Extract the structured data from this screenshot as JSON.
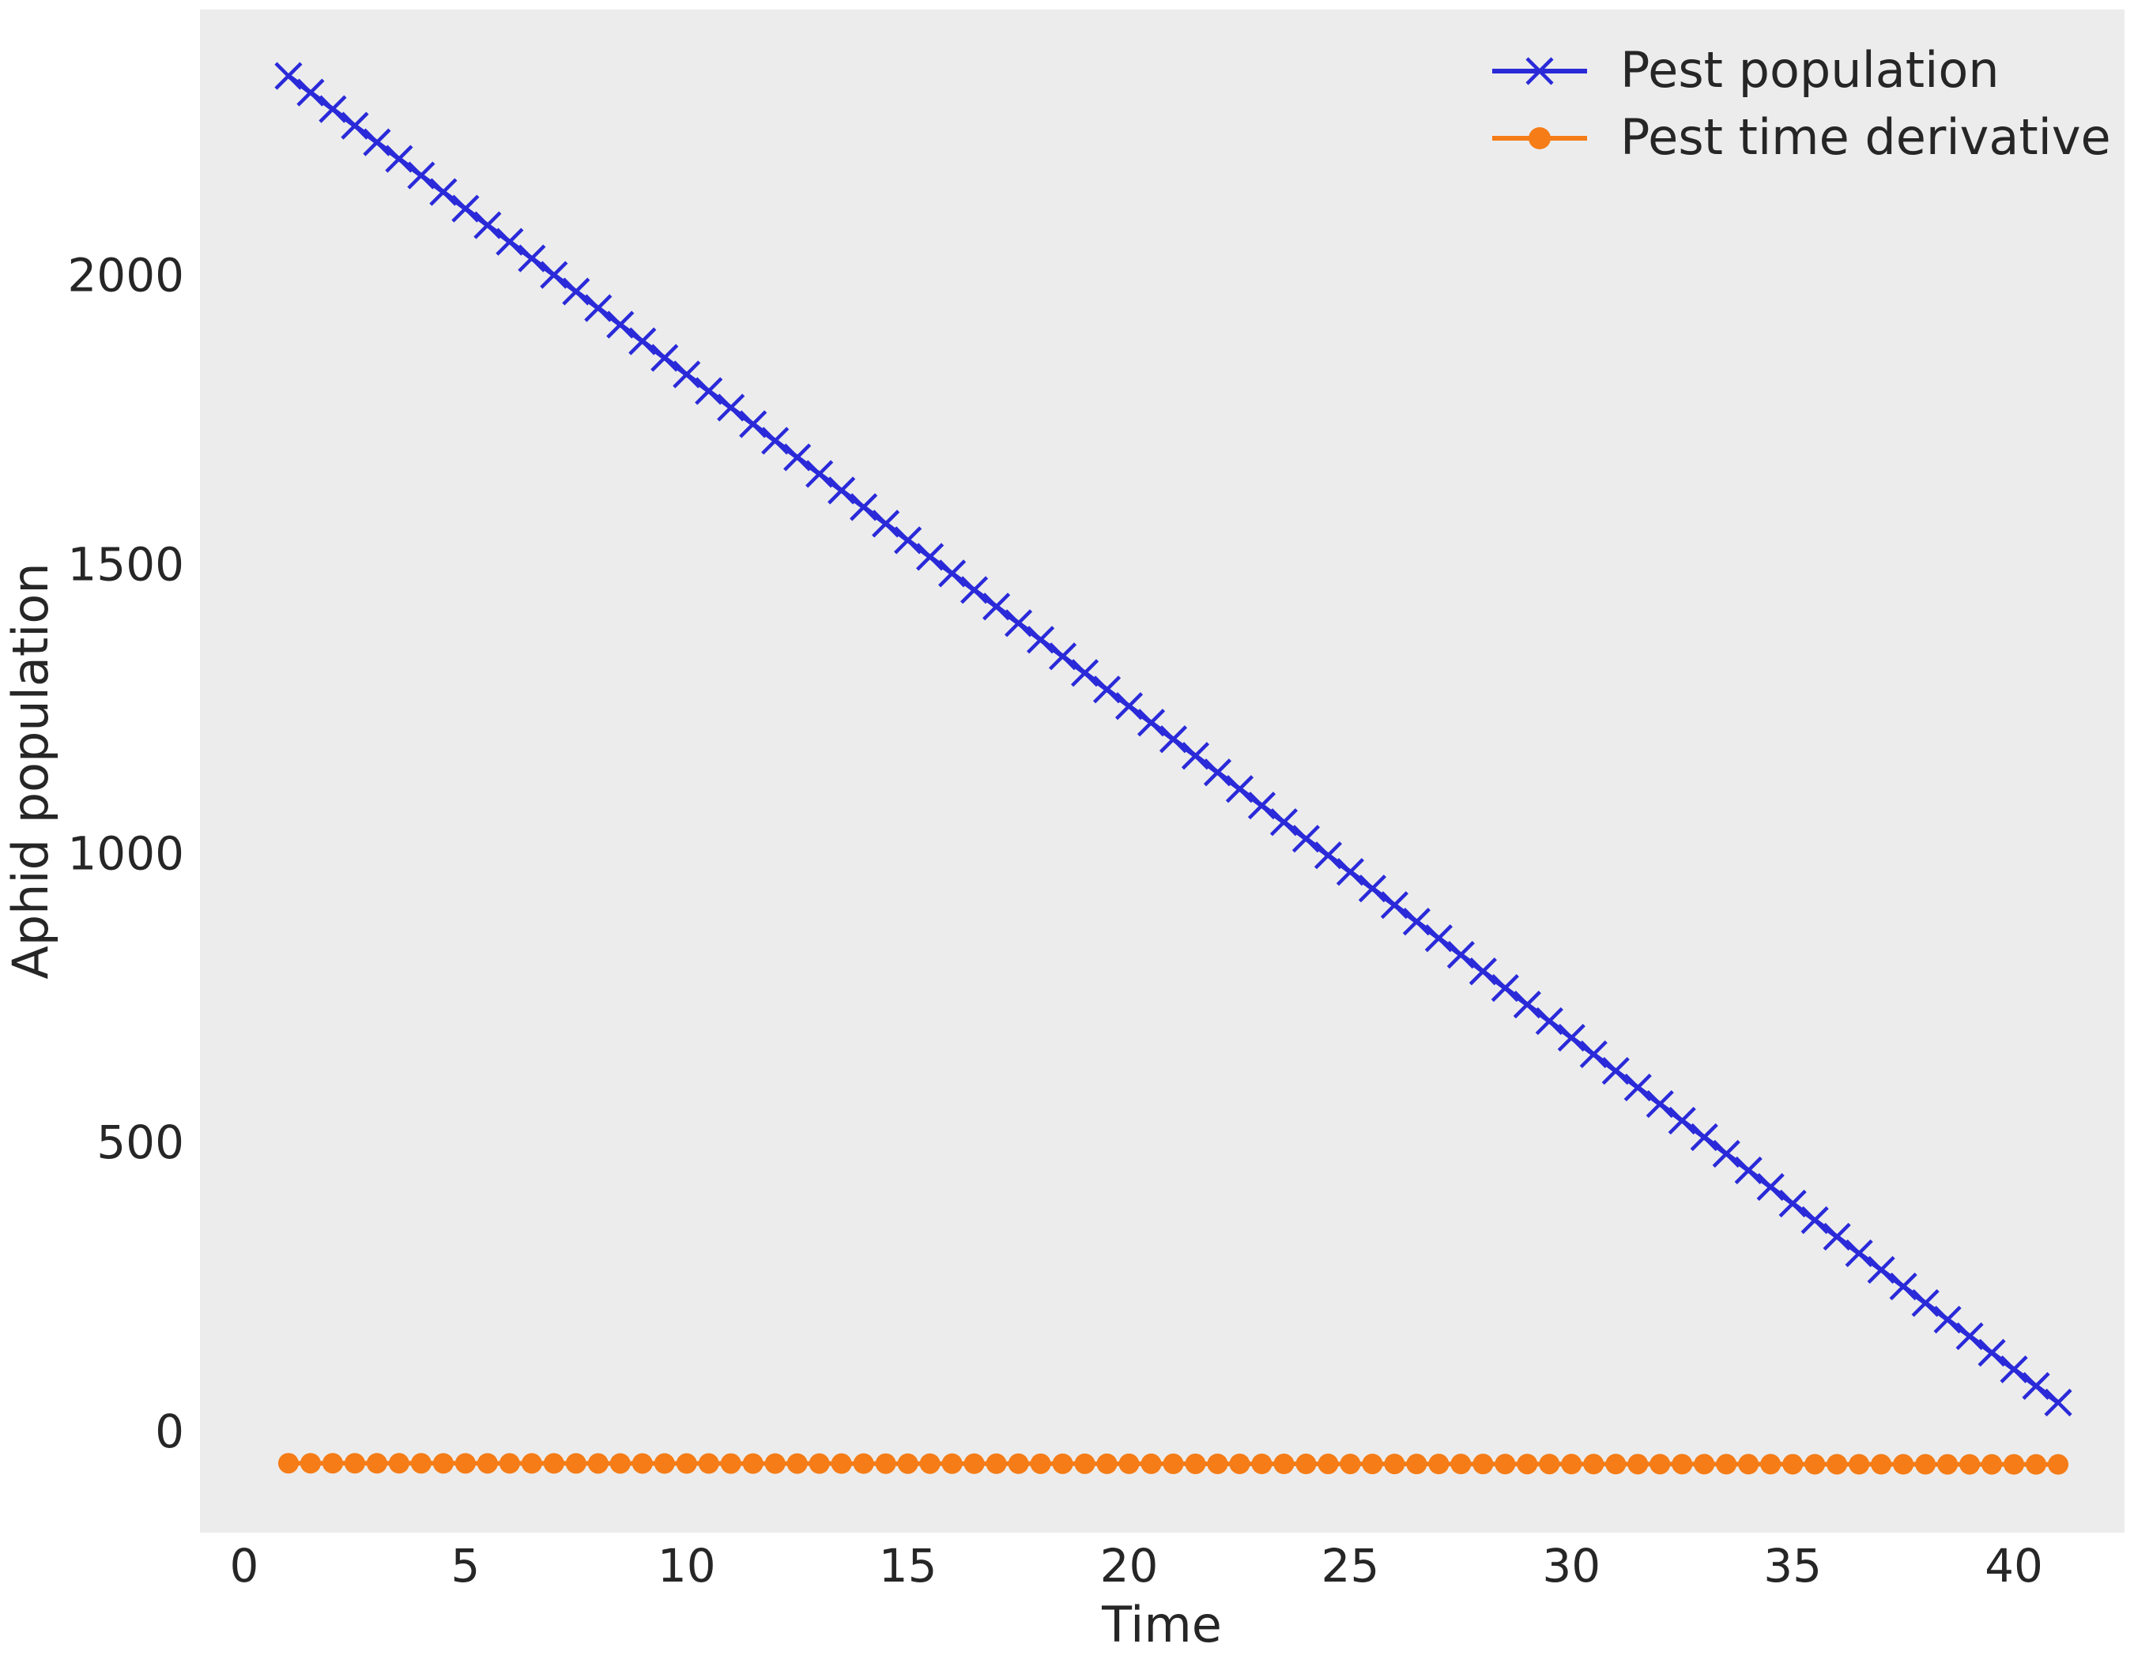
{
  "chart_data": {
    "type": "line",
    "xlabel": "Time",
    "ylabel": "Aphid population",
    "xlim": [
      -1,
      42.5
    ],
    "ylim": [
      -175,
      2460
    ],
    "xticks": [
      0,
      5,
      10,
      15,
      20,
      25,
      30,
      35,
      40
    ],
    "yticks": [
      0,
      500,
      1000,
      1500,
      2000
    ],
    "grid": false,
    "legend_position": "top-right",
    "background": "#ececec",
    "x": {
      "start": 1,
      "end": 41,
      "step": 0.5
    },
    "series": [
      {
        "name": "Pest population",
        "color": "#2a2ad9",
        "marker": "x",
        "start_value": 2345,
        "end_value": 50
      },
      {
        "name": "Pest time derivative",
        "color": "#f57c16",
        "marker": "circle",
        "start_value": -55,
        "end_value": -57
      }
    ]
  }
}
